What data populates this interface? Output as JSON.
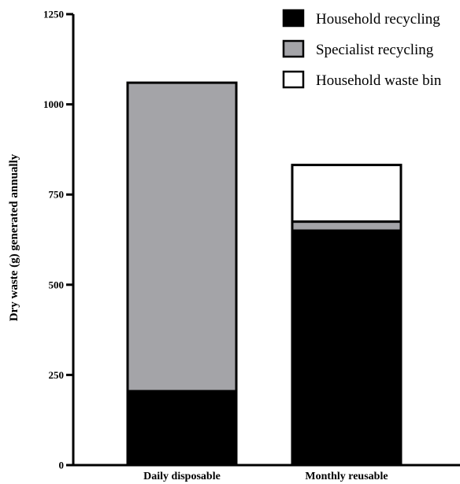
{
  "chart_data": {
    "type": "bar",
    "stacked": true,
    "categories": [
      "Daily disposable",
      "Monthly reusable"
    ],
    "series": [
      {
        "name": "Household recycling",
        "values": [
          205,
          650
        ],
        "color": "#000000"
      },
      {
        "name": "Specialist recycling",
        "values": [
          855,
          25
        ],
        "color": "#a4a4a8"
      },
      {
        "name": "Household waste bin",
        "values": [
          0,
          157
        ],
        "color": "#ffffff"
      }
    ],
    "title": "",
    "xlabel": "",
    "ylabel": "Dry waste (g) generated annually",
    "ylim": [
      0,
      1250
    ],
    "yticks": [
      "0",
      "250",
      "500",
      "750",
      "1000",
      "1250"
    ],
    "grid": false,
    "legend_position": "top-right"
  }
}
